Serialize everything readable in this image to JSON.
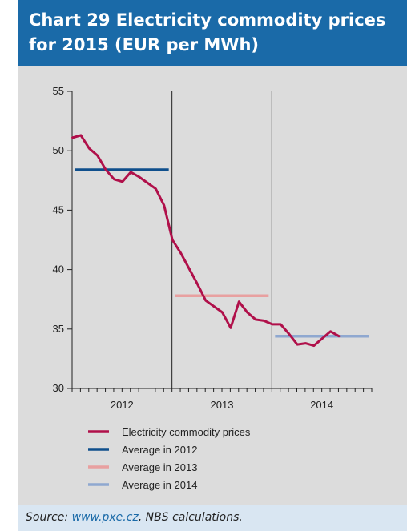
{
  "title": "Chart 29 Electricity commodity prices for 2015 (EUR per MWh)",
  "source": {
    "prefix": "Source: ",
    "link": "www.pxe.cz",
    "suffix": ", NBS calculations."
  },
  "colors": {
    "title_bg": "#1a6aa8",
    "chart_bg": "#dcdcdc",
    "source_bg": "#d9e6f2",
    "prices": "#b0104a",
    "avg2012": "#0f4f8c",
    "avg2013": "#e8a0a0",
    "avg2014": "#8fa8d0"
  },
  "chart_data": {
    "type": "line",
    "title": "Chart 29 Electricity commodity prices for 2015 (EUR per MWh)",
    "xlabel": "",
    "ylabel": "",
    "ylim": [
      30,
      55
    ],
    "yticks": [
      30,
      35,
      40,
      45,
      50,
      55
    ],
    "year_labels": [
      "2012",
      "2013",
      "2014"
    ],
    "months_per_year": 12,
    "legend_position": "bottom",
    "grid": false,
    "series": [
      {
        "name": "Electricity commodity prices",
        "color": "#b0104a",
        "values": [
          51.1,
          51.3,
          50.2,
          49.6,
          48.4,
          47.6,
          47.4,
          48.2,
          47.8,
          47.3,
          46.8,
          45.4,
          42.5,
          41.4,
          40.1,
          38.8,
          37.4,
          36.9,
          36.4,
          35.1,
          37.3,
          36.4,
          35.8,
          35.7,
          35.4,
          35.4,
          34.6,
          33.7,
          33.8,
          33.6,
          34.2,
          34.8,
          34.4
        ]
      }
    ],
    "averages": [
      {
        "name": "Average in 2012",
        "color": "#0f4f8c",
        "value": 48.4,
        "year_index": 0
      },
      {
        "name": "Average in 2013",
        "color": "#e8a0a0",
        "value": 37.8,
        "year_index": 1
      },
      {
        "name": "Average in 2014",
        "color": "#8fa8d0",
        "value": 34.4,
        "year_index": 2
      }
    ]
  }
}
